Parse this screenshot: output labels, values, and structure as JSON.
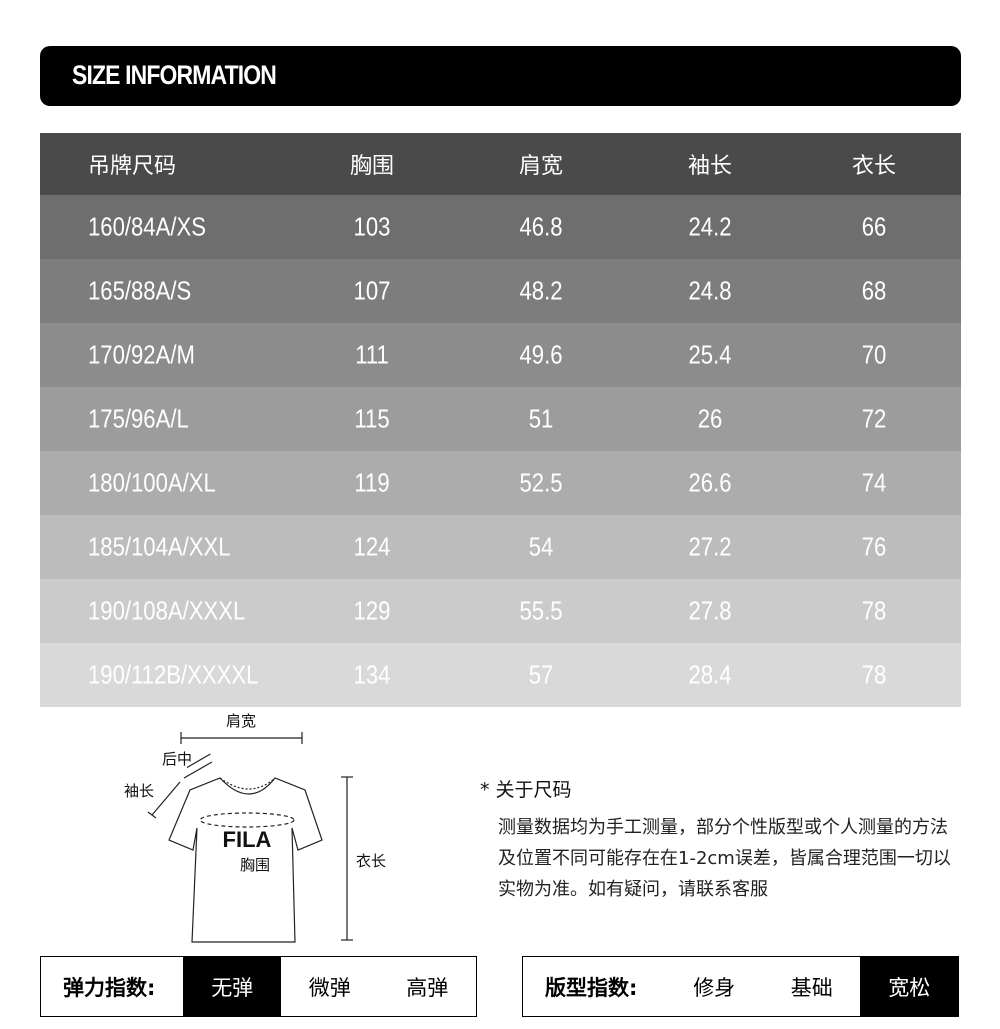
{
  "title": "SIZE INFORMATION",
  "table": {
    "headers": [
      "吊牌尺码",
      "胸围",
      "肩宽",
      "袖长",
      "衣长"
    ],
    "rows": [
      [
        "160/84A/XS",
        "103",
        "46.8",
        "24.2",
        "66"
      ],
      [
        "165/88A/S",
        "107",
        "48.2",
        "24.8",
        "68"
      ],
      [
        "170/92A/M",
        "111",
        "49.6",
        "25.4",
        "70"
      ],
      [
        "175/96A/L",
        "115",
        "51",
        "26",
        "72"
      ],
      [
        "180/100A/XL",
        "119",
        "52.5",
        "26.6",
        "74"
      ],
      [
        "185/104A/XXL",
        "124",
        "54",
        "27.2",
        "76"
      ],
      [
        "190/108A/XXXL",
        "129",
        "55.5",
        "27.8",
        "78"
      ],
      [
        "190/112B/XXXXL",
        "134",
        "57",
        "28.4",
        "78"
      ]
    ],
    "row_colors": [
      "#6e6e6e",
      "#7d7d7d",
      "#8c8c8c",
      "#9c9c9c",
      "#acacac",
      "#bcbcbc",
      "#cbcbcb",
      "#d9d9d9"
    ],
    "header_color": "#4a4a4a"
  },
  "diagram": {
    "shoulder": "肩宽",
    "back_center": "后中",
    "sleeve": "袖长",
    "chest": "胸围",
    "length": "衣长",
    "logo": "FILA"
  },
  "note": {
    "title": "* 关于尺码",
    "body": "测量数据均为手工测量，部分个性版型或个人测量的方法及位置不同可能存在在1-2cm误差，皆属合理范围一切以实物为准。如有疑问，请联系客服"
  },
  "elasticity": {
    "label": "弹力指数:",
    "options": [
      "无弹",
      "微弹",
      "高弹"
    ],
    "selected": "无弹"
  },
  "fit": {
    "label": "版型指数:",
    "options": [
      "修身",
      "基础",
      "宽松"
    ],
    "selected": "宽松"
  }
}
